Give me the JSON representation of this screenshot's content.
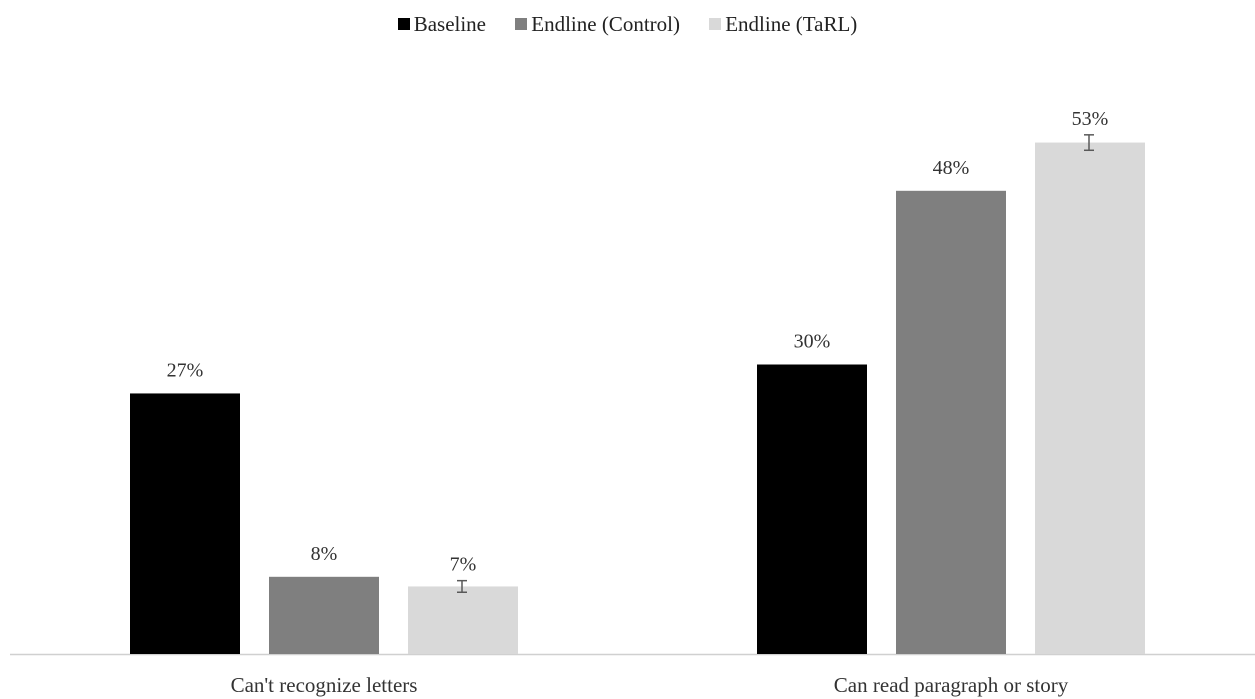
{
  "chart_data": {
    "type": "bar",
    "categories": [
      "Can't recognize letters",
      "Can read paragraph or story"
    ],
    "series": [
      {
        "name": "Baseline",
        "values": [
          27,
          30
        ],
        "labels": [
          "27%",
          "30%"
        ],
        "color": "#000000"
      },
      {
        "name": "Endline (Control)",
        "values": [
          8,
          48
        ],
        "labels": [
          "8%",
          "48%"
        ],
        "color": "#7f7f7f"
      },
      {
        "name": "Endline (TaRL)",
        "values": [
          7,
          53
        ],
        "labels": [
          "7%",
          "53%"
        ],
        "color": "#d9d9d9",
        "error": [
          0.6,
          0.8
        ]
      }
    ],
    "value_unit": "%",
    "ylim": [
      0,
      60
    ],
    "grid": false,
    "legend_position": "top"
  }
}
